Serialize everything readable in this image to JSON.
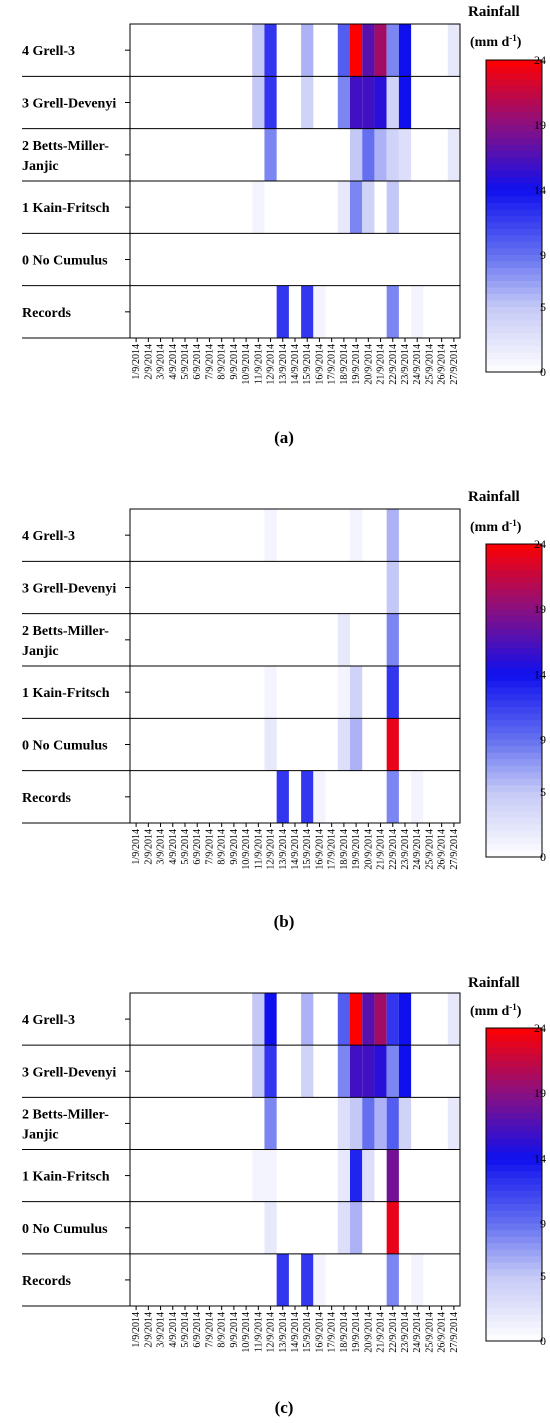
{
  "colorbar": {
    "title_line1": "Rainfall",
    "title_line2": "(mm d",
    "title_sup": "-1",
    "title_close": ")",
    "ticks": [
      "24",
      "19",
      "14",
      "9",
      "5",
      "0"
    ],
    "tick_values": [
      24,
      19,
      14,
      9,
      5,
      0
    ],
    "stops": [
      {
        "v": 0,
        "c": "#ffffff"
      },
      {
        "v": 5,
        "c": "#c4c8f6"
      },
      {
        "v": 9,
        "c": "#6470f0"
      },
      {
        "v": 14,
        "c": "#1010ee"
      },
      {
        "v": 19,
        "c": "#8a1080"
      },
      {
        "v": 24,
        "c": "#ff0000"
      }
    ]
  },
  "chart_data": [
    {
      "type": "heatmap",
      "caption": "(a)",
      "categories": [
        "1/9/2014",
        "2/9/2014",
        "3/9/2014",
        "4/9/2014",
        "5/9/2014",
        "6/9/2014",
        "7/9/2014",
        "8/9/2014",
        "9/9/2014",
        "10/9/2014",
        "11/9/2014",
        "12/9/2014",
        "13/9/2014",
        "14/9/2014",
        "15/9/2014",
        "16/9/2014",
        "17/9/2014",
        "18/9/2014",
        "19/9/2014",
        "20/9/2014",
        "21/9/2014",
        "22/9/2014",
        "23/9/2014",
        "24/9/2014",
        "25/9/2014",
        "26/9/2014",
        "27/9/2014"
      ],
      "rows": [
        {
          "label": [
            "4 Grell-3"
          ],
          "cells": {
            "11/9/2014": 5,
            "12/9/2014": 12,
            "15/9/2014": 6,
            "18/9/2014": 10,
            "19/9/2014": 24,
            "20/9/2014": 17,
            "21/9/2014": 20,
            "22/9/2014": 8,
            "23/9/2014": 14,
            "27/9/2014": 2
          }
        },
        {
          "label": [
            "3 Grell-Devenyi"
          ],
          "cells": {
            "11/9/2014": 5,
            "12/9/2014": 12,
            "15/9/2014": 4,
            "18/9/2014": 8,
            "19/9/2014": 16,
            "20/9/2014": 16,
            "21/9/2014": 15,
            "22/9/2014": 4,
            "23/9/2014": 14
          }
        },
        {
          "label": [
            "2 Betts-Miller-",
            "Janjic"
          ],
          "cells": {
            "12/9/2014": 8,
            "19/9/2014": 5,
            "20/9/2014": 9,
            "21/9/2014": 6,
            "22/9/2014": 4,
            "23/9/2014": 3,
            "27/9/2014": 2
          }
        },
        {
          "label": [
            "1 Kain-Fritsch"
          ],
          "cells": {
            "11/9/2014": 1,
            "18/9/2014": 2,
            "19/9/2014": 8,
            "20/9/2014": 4,
            "22/9/2014": 5
          }
        },
        {
          "label": [
            "0 No Cumulus"
          ],
          "cells": {}
        },
        {
          "label": [
            "Records"
          ],
          "cells": {
            "13/9/2014": 12,
            "15/9/2014": 12,
            "16/9/2014": 1,
            "22/9/2014": 8,
            "24/9/2014": 1
          }
        }
      ]
    },
    {
      "type": "heatmap",
      "caption": "(b)",
      "categories": [
        "1/9/2014",
        "2/9/2014",
        "3/9/2014",
        "4/9/2014",
        "5/9/2014",
        "6/9/2014",
        "7/9/2014",
        "8/9/2014",
        "9/9/2014",
        "10/9/2014",
        "11/9/2014",
        "12/9/2014",
        "13/9/2014",
        "14/9/2014",
        "15/9/2014",
        "16/9/2014",
        "17/9/2014",
        "18/9/2014",
        "19/9/2014",
        "20/9/2014",
        "21/9/2014",
        "22/9/2014",
        "23/9/2014",
        "24/9/2014",
        "25/9/2014",
        "26/9/2014",
        "27/9/2014"
      ],
      "rows": [
        {
          "label": [
            "4 Grell-3"
          ],
          "cells": {
            "12/9/2014": 1,
            "19/9/2014": 1,
            "22/9/2014": 6
          }
        },
        {
          "label": [
            "3 Grell-Devenyi"
          ],
          "cells": {
            "22/9/2014": 5
          }
        },
        {
          "label": [
            "2 Betts-Miller-",
            "Janjic"
          ],
          "cells": {
            "18/9/2014": 2,
            "22/9/2014": 8
          }
        },
        {
          "label": [
            "1 Kain-Fritsch"
          ],
          "cells": {
            "12/9/2014": 1,
            "18/9/2014": 1,
            "19/9/2014": 4,
            "22/9/2014": 12
          }
        },
        {
          "label": [
            "0 No Cumulus"
          ],
          "cells": {
            "12/9/2014": 2,
            "18/9/2014": 3,
            "19/9/2014": 6,
            "22/9/2014": 23
          }
        },
        {
          "label": [
            "Records"
          ],
          "cells": {
            "13/9/2014": 12,
            "15/9/2014": 12,
            "16/9/2014": 1,
            "22/9/2014": 8,
            "24/9/2014": 1
          }
        }
      ]
    },
    {
      "type": "heatmap",
      "caption": "(c)",
      "categories": [
        "1/9/2014",
        "2/9/2014",
        "3/9/2014",
        "4/9/2014",
        "5/9/2014",
        "6/9/2014",
        "7/9/2014",
        "8/9/2014",
        "9/9/2014",
        "10/9/2014",
        "11/9/2014",
        "12/9/2014",
        "13/9/2014",
        "14/9/2014",
        "15/9/2014",
        "16/9/2014",
        "17/9/2014",
        "18/9/2014",
        "19/9/2014",
        "20/9/2014",
        "21/9/2014",
        "22/9/2014",
        "23/9/2014",
        "24/9/2014",
        "25/9/2014",
        "26/9/2014",
        "27/9/2014"
      ],
      "rows": [
        {
          "label": [
            "4 Grell-3"
          ],
          "cells": {
            "11/9/2014": 5,
            "12/9/2014": 14,
            "15/9/2014": 6,
            "18/9/2014": 10,
            "19/9/2014": 24,
            "20/9/2014": 17,
            "21/9/2014": 20,
            "22/9/2014": 12,
            "23/9/2014": 14,
            "27/9/2014": 2
          }
        },
        {
          "label": [
            "3 Grell-Devenyi"
          ],
          "cells": {
            "11/9/2014": 5,
            "12/9/2014": 12,
            "15/9/2014": 4,
            "18/9/2014": 8,
            "19/9/2014": 16,
            "20/9/2014": 16,
            "21/9/2014": 15,
            "22/9/2014": 8,
            "23/9/2014": 14
          }
        },
        {
          "label": [
            "2 Betts-Miller-",
            "Janjic"
          ],
          "cells": {
            "12/9/2014": 8,
            "18/9/2014": 3,
            "19/9/2014": 5,
            "20/9/2014": 9,
            "21/9/2014": 6,
            "22/9/2014": 10,
            "23/9/2014": 4,
            "27/9/2014": 2
          }
        },
        {
          "label": [
            "1 Kain-Fritsch"
          ],
          "cells": {
            "11/9/2014": 1,
            "12/9/2014": 1,
            "18/9/2014": 2,
            "19/9/2014": 13,
            "20/9/2014": 3,
            "22/9/2014": 18
          }
        },
        {
          "label": [
            "0 No Cumulus"
          ],
          "cells": {
            "12/9/2014": 2,
            "18/9/2014": 3,
            "19/9/2014": 6,
            "22/9/2014": 23
          }
        },
        {
          "label": [
            "Records"
          ],
          "cells": {
            "13/9/2014": 12,
            "15/9/2014": 12,
            "16/9/2014": 1,
            "22/9/2014": 8,
            "24/9/2014": 1
          }
        }
      ]
    }
  ]
}
